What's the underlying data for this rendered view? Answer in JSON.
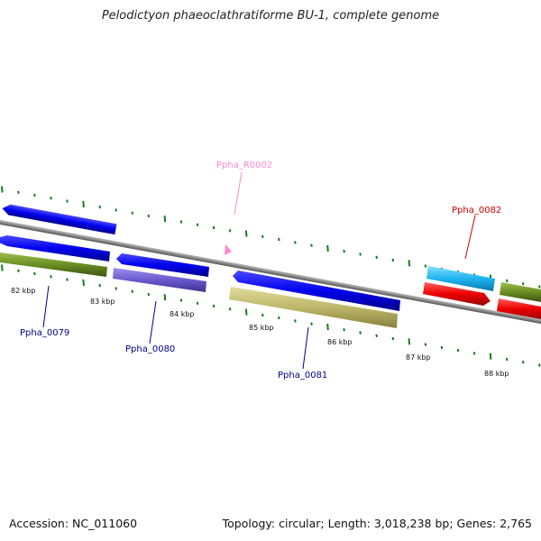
{
  "title": "Pelodictyon phaeoclathratiforme BU-1, complete genome",
  "footer": {
    "accession": "Accession: NC_011060",
    "summary": "Topology: circular; Length: 3,018,238 bp; Genes: 2,765"
  },
  "kbp_labels": [
    "82 kbp",
    "83 kbp",
    "84 kbp",
    "85 kbp",
    "86 kbp",
    "87 kbp",
    "88 kbp"
  ],
  "gene_labels": {
    "ppha_0079": "Ppha_0079",
    "ppha_0080": "Ppha_0080",
    "ppha_0081": "Ppha_0081",
    "ppha_0082": "Ppha_0082",
    "ppha_r0002": "Ppha_R0002"
  },
  "colors": {
    "blue": "#0000ee",
    "olive": "#6b8e23",
    "purple": "#6a5acd",
    "khaki": "#bdb76b",
    "cyan": "#1eb4f0",
    "red": "#ee0000",
    "pink": "#ff88cc",
    "tick": "#1a7a1a",
    "backbone": "#888888"
  }
}
